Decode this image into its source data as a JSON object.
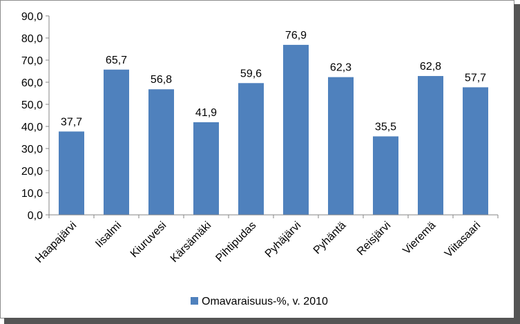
{
  "chart_data": {
    "type": "bar",
    "title": "",
    "xlabel": "",
    "ylabel": "",
    "ylim": [
      0,
      90
    ],
    "yticks": [
      "0,0",
      "10,0",
      "20,0",
      "30,0",
      "40,0",
      "50,0",
      "60,0",
      "70,0",
      "80,0",
      "90,0"
    ],
    "grid": false,
    "legend_position": "bottom",
    "bar_color": "#4F81BD",
    "categories": [
      "Haapajärvi",
      "Iisalmi",
      "Kiuruvesi",
      "Kärsämäki",
      "Pihtipudas",
      "Pyhäjärvi",
      "Pyhäntä",
      "Reisjärvi",
      "Vieremä",
      "Viitasaari"
    ],
    "series": [
      {
        "name": "Omavaraisuus-%, v. 2010",
        "values": [
          37.7,
          65.7,
          56.8,
          41.9,
          59.6,
          76.9,
          62.3,
          35.5,
          62.8,
          57.7
        ],
        "labels": [
          "37,7",
          "65,7",
          "56,8",
          "41,9",
          "59,6",
          "76,9",
          "62,3",
          "35,5",
          "62,8",
          "57,7"
        ]
      }
    ]
  }
}
